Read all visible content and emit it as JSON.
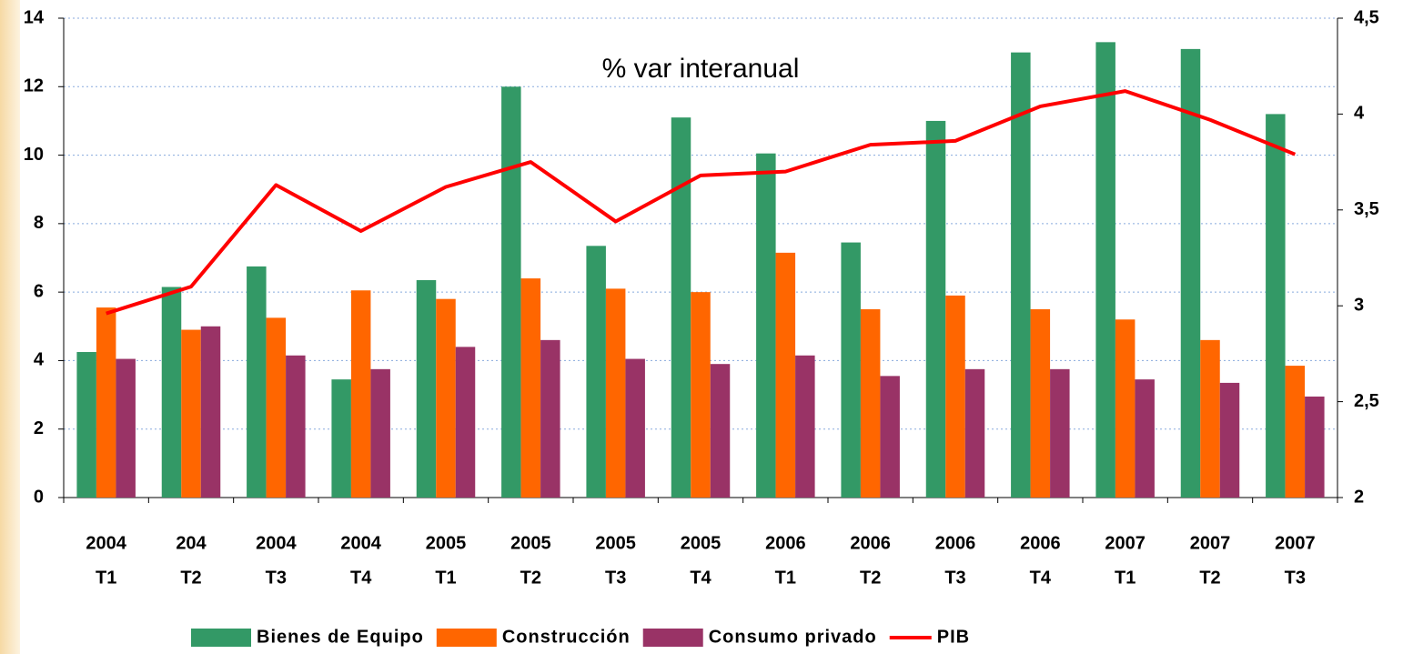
{
  "chart_data": {
    "type": "bar",
    "annotation": "% var interanual",
    "categories": [
      [
        "2004",
        "T1"
      ],
      [
        "204",
        "T2"
      ],
      [
        "2004",
        "T3"
      ],
      [
        "2004",
        "T4"
      ],
      [
        "2005",
        "T1"
      ],
      [
        "2005",
        "T2"
      ],
      [
        "2005",
        "T3"
      ],
      [
        "2005",
        "T4"
      ],
      [
        "2006",
        "T1"
      ],
      [
        "2006",
        "T2"
      ],
      [
        "2006",
        "T3"
      ],
      [
        "2006",
        "T4"
      ],
      [
        "2007",
        "T1"
      ],
      [
        "2007",
        "T2"
      ],
      [
        "2007",
        "T3"
      ]
    ],
    "series": [
      {
        "name": "Bienes de Equipo",
        "color": "#339966",
        "values": [
          4.25,
          6.15,
          6.75,
          3.45,
          6.35,
          12,
          7.35,
          11.1,
          10.05,
          7.45,
          11,
          13,
          13.3,
          13.1,
          11.2
        ]
      },
      {
        "name": "Construcción",
        "color": "#ff6600",
        "values": [
          5.55,
          4.9,
          5.25,
          6.05,
          5.8,
          6.4,
          6.1,
          6.0,
          7.15,
          5.5,
          5.9,
          5.5,
          5.2,
          4.6,
          3.85
        ]
      },
      {
        "name": "Consumo privado",
        "color": "#993366",
        "values": [
          4.05,
          5.0,
          4.15,
          3.75,
          4.4,
          4.6,
          4.05,
          3.9,
          4.15,
          3.55,
          3.75,
          3.75,
          3.45,
          3.35,
          2.95
        ]
      },
      {
        "name": "PIB",
        "color": "#ff0000",
        "type": "line",
        "axis": "y2",
        "values": [
          2.96,
          3.1,
          3.63,
          3.39,
          3.62,
          3.75,
          3.44,
          3.68,
          3.7,
          3.84,
          3.86,
          4.04,
          4.12,
          3.97,
          3.79
        ]
      }
    ],
    "ylim": [
      0,
      14
    ],
    "yticks": [
      0,
      2,
      4,
      6,
      8,
      10,
      12,
      14
    ],
    "y2lim": [
      2,
      4.5
    ],
    "y2ticks": [
      2,
      {
        "value": 2.5,
        "label": "2,5"
      },
      3,
      {
        "value": 3.5,
        "label": "3,5"
      },
      4,
      {
        "value": 4.5,
        "label": "4,5"
      }
    ],
    "grid": true
  }
}
